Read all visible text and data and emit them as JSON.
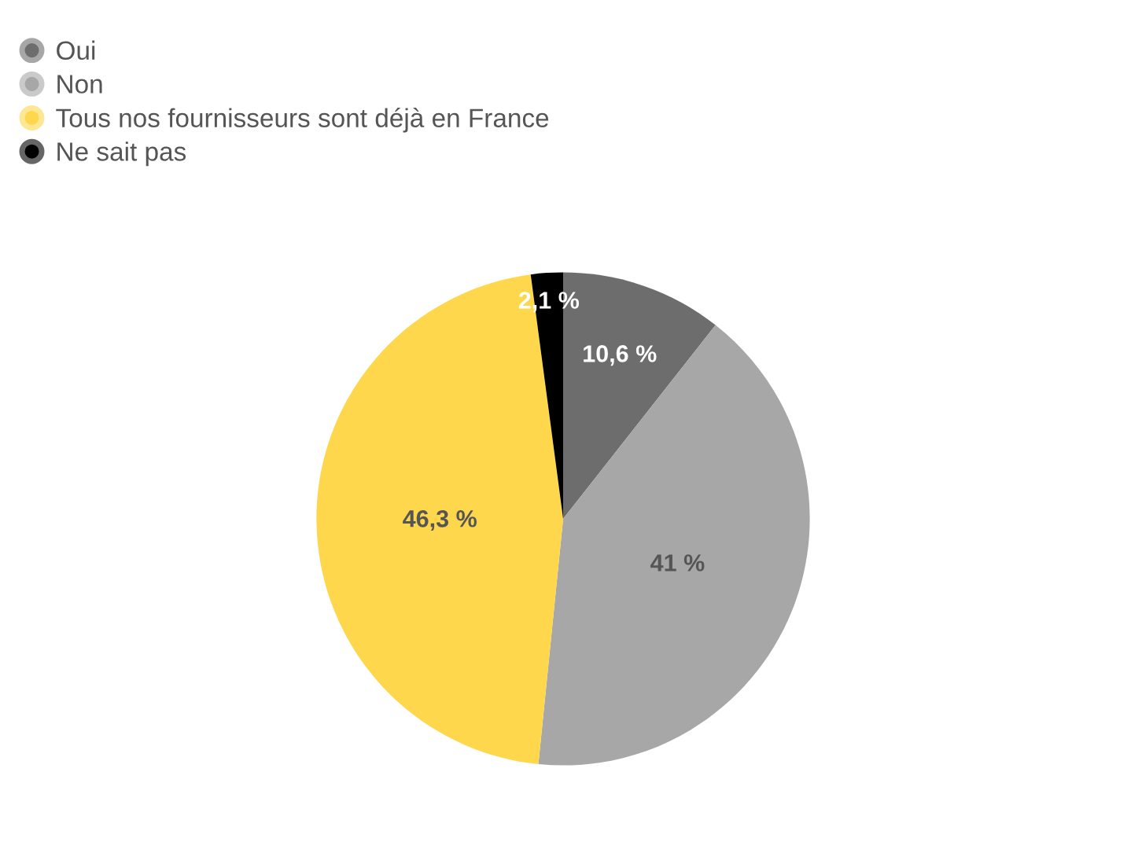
{
  "chart_data": {
    "type": "pie",
    "categories": [
      "Oui",
      "Non",
      "Tous nos fournisseurs sont déjà en France",
      "Ne sait pas"
    ],
    "values": [
      10.6,
      41,
      46.3,
      2.1
    ],
    "value_labels": [
      "10,6 %",
      "41 %",
      "46,3 %",
      "2,1 %"
    ],
    "colors": [
      "#6d6d6e",
      "#a7a7a8",
      "#fed74c",
      "#000000"
    ],
    "legend": "top left"
  }
}
